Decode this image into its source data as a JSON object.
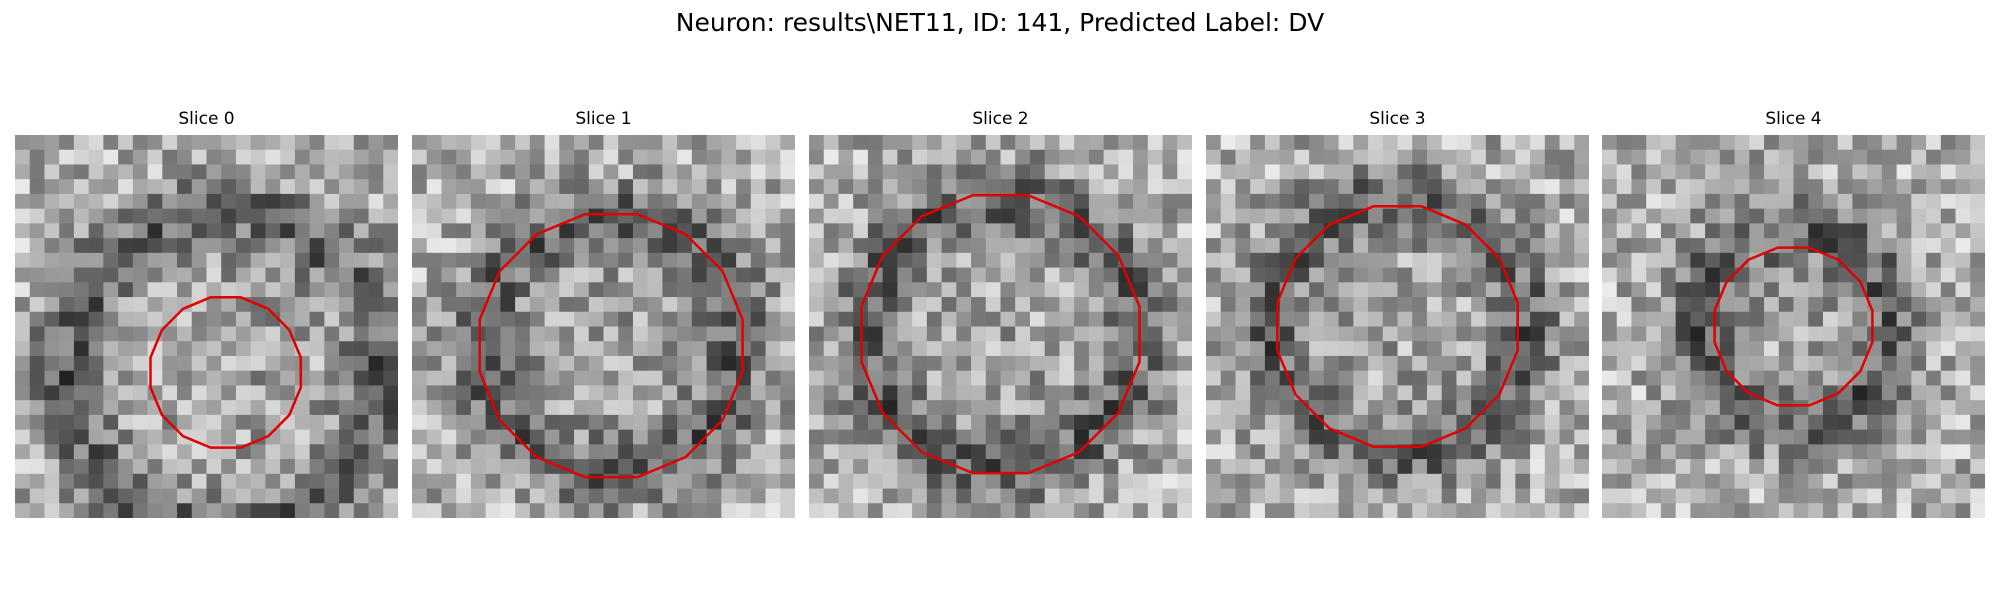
{
  "figure": {
    "title": "Neuron: results\\NET11, ID: 141, Predicted Label: DV"
  },
  "outline_color": "#e00000",
  "slices": [
    {
      "title": "Slice 0",
      "grid": 26,
      "seed": 11,
      "dark": [
        0.55,
        0.62,
        0.42
      ],
      "contour_radius": 0.2
    },
    {
      "title": "Slice 1",
      "grid": 26,
      "seed": 23,
      "dark": [
        0.52,
        0.55,
        0.34
      ],
      "contour_radius": 0.35
    },
    {
      "title": "Slice 2",
      "grid": 26,
      "seed": 37,
      "dark": [
        0.5,
        0.52,
        0.36
      ],
      "contour_radius": 0.37
    },
    {
      "title": "Slice 3",
      "grid": 26,
      "seed": 41,
      "dark": [
        0.5,
        0.5,
        0.34
      ],
      "contour_radius": 0.32
    },
    {
      "title": "Slice 4",
      "grid": 26,
      "seed": 53,
      "dark": [
        0.5,
        0.5,
        0.26
      ],
      "contour_radius": 0.21
    }
  ]
}
